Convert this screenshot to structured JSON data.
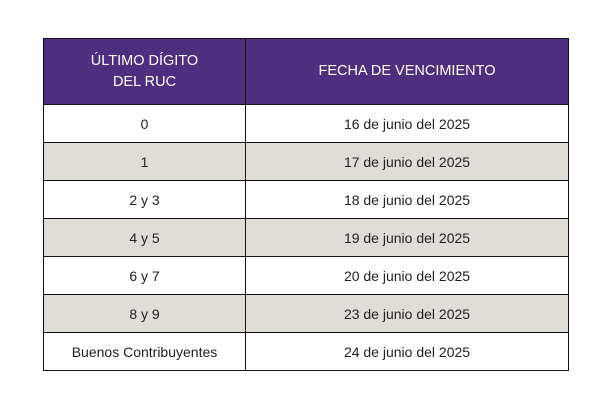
{
  "colors": {
    "header_bg": "#4e2e7e",
    "alt_row_bg": "#e0dcd8"
  },
  "header": {
    "col1_line1": "ÚLTIMO DÍGITO",
    "col1_line2": "DEL RUC",
    "col2": "FECHA DE VENCIMIENTO"
  },
  "rows": [
    {
      "digit": "0",
      "date": "16 de junio del 2025"
    },
    {
      "digit": "1",
      "date": "17 de junio del 2025"
    },
    {
      "digit": "2 y 3",
      "date": "18 de junio del 2025"
    },
    {
      "digit": "4 y 5",
      "date": "19 de junio del 2025"
    },
    {
      "digit": "6 y 7",
      "date": "20 de junio del 2025"
    },
    {
      "digit": "8 y 9",
      "date": "23 de junio del 2025"
    },
    {
      "digit": "Buenos Contribuyentes",
      "date": "24 de junio del 2025"
    }
  ]
}
